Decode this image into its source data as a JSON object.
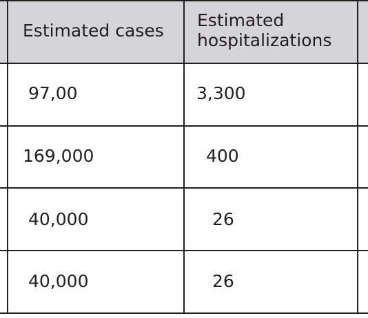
{
  "table": {
    "headers": [
      "Estimated cases",
      "Estimated\nhospitalizations"
    ],
    "rows": [
      [
        "97,00",
        "3,300"
      ],
      [
        "169,000",
        "400"
      ],
      [
        "40,000",
        "26"
      ],
      [
        "40,000",
        "26"
      ]
    ]
  },
  "colors": {
    "header_background": "#d4d4d9",
    "grid_lines": "#231f20",
    "text": "#231f20"
  }
}
